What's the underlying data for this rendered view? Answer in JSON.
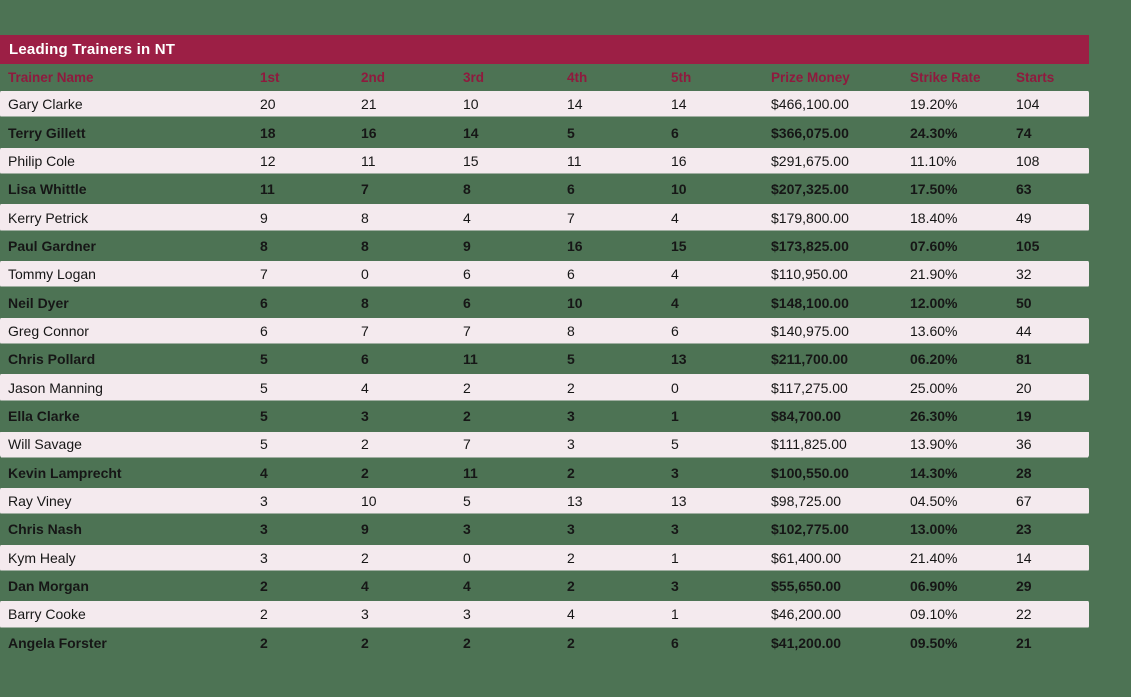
{
  "title_bar": {
    "title": "Leading Trainers in NT"
  },
  "colors": {
    "page_background": "#4d7354",
    "title_bar_background": "#9c1f45",
    "title_text": "#ffffff",
    "header_text": "#8f1a3e",
    "row_light_background": "#f4eaee",
    "row_text": "#161616"
  },
  "chart_data": {
    "type": "table",
    "title": "Leading Trainers in NT",
    "columns": [
      "Trainer Name",
      "1st",
      "2nd",
      "3rd",
      "4th",
      "5th",
      "Prize Money",
      "Strike Rate",
      "Starts"
    ],
    "rows": [
      [
        "Gary Clarke",
        "20",
        "21",
        "10",
        "14",
        "14",
        "$466,100.00",
        "19.20%",
        "104"
      ],
      [
        "Terry Gillett",
        "18",
        "16",
        "14",
        "5",
        "6",
        "$366,075.00",
        "24.30%",
        "74"
      ],
      [
        "Philip Cole",
        "12",
        "11",
        "15",
        "11",
        "16",
        "$291,675.00",
        "11.10%",
        "108"
      ],
      [
        "Lisa Whittle",
        "11",
        "7",
        "8",
        "6",
        "10",
        "$207,325.00",
        "17.50%",
        "63"
      ],
      [
        "Kerry Petrick",
        "9",
        "8",
        "4",
        "7",
        "4",
        "$179,800.00",
        "18.40%",
        "49"
      ],
      [
        "Paul Gardner",
        "8",
        "8",
        "9",
        "16",
        "15",
        "$173,825.00",
        "07.60%",
        "105"
      ],
      [
        "Tommy Logan",
        "7",
        "0",
        "6",
        "6",
        "4",
        "$110,950.00",
        "21.90%",
        "32"
      ],
      [
        "Neil Dyer",
        "6",
        "8",
        "6",
        "10",
        "4",
        "$148,100.00",
        "12.00%",
        "50"
      ],
      [
        "Greg Connor",
        "6",
        "7",
        "7",
        "8",
        "6",
        "$140,975.00",
        "13.60%",
        "44"
      ],
      [
        "Chris Pollard",
        "5",
        "6",
        "11",
        "5",
        "13",
        "$211,700.00",
        "06.20%",
        "81"
      ],
      [
        "Jason Manning",
        "5",
        "4",
        "2",
        "2",
        "0",
        "$117,275.00",
        "25.00%",
        "20"
      ],
      [
        "Ella Clarke",
        "5",
        "3",
        "2",
        "3",
        "1",
        "$84,700.00",
        "26.30%",
        "19"
      ],
      [
        "Will Savage",
        "5",
        "2",
        "7",
        "3",
        "5",
        "$111,825.00",
        "13.90%",
        "36"
      ],
      [
        "Kevin Lamprecht",
        "4",
        "2",
        "11",
        "2",
        "3",
        "$100,550.00",
        "14.30%",
        "28"
      ],
      [
        "Ray Viney",
        "3",
        "10",
        "5",
        "13",
        "13",
        "$98,725.00",
        "04.50%",
        "67"
      ],
      [
        "Chris Nash",
        "3",
        "9",
        "3",
        "3",
        "3",
        "$102,775.00",
        "13.00%",
        "23"
      ],
      [
        "Kym Healy",
        "3",
        "2",
        "0",
        "2",
        "1",
        "$61,400.00",
        "21.40%",
        "14"
      ],
      [
        "Dan Morgan",
        "2",
        "4",
        "4",
        "2",
        "3",
        "$55,650.00",
        "06.90%",
        "29"
      ],
      [
        "Barry Cooke",
        "2",
        "3",
        "3",
        "4",
        "1",
        "$46,200.00",
        "09.10%",
        "22"
      ],
      [
        "Angela Forster",
        "2",
        "2",
        "2",
        "2",
        "6",
        "$41,200.00",
        "09.50%",
        "21"
      ]
    ]
  }
}
